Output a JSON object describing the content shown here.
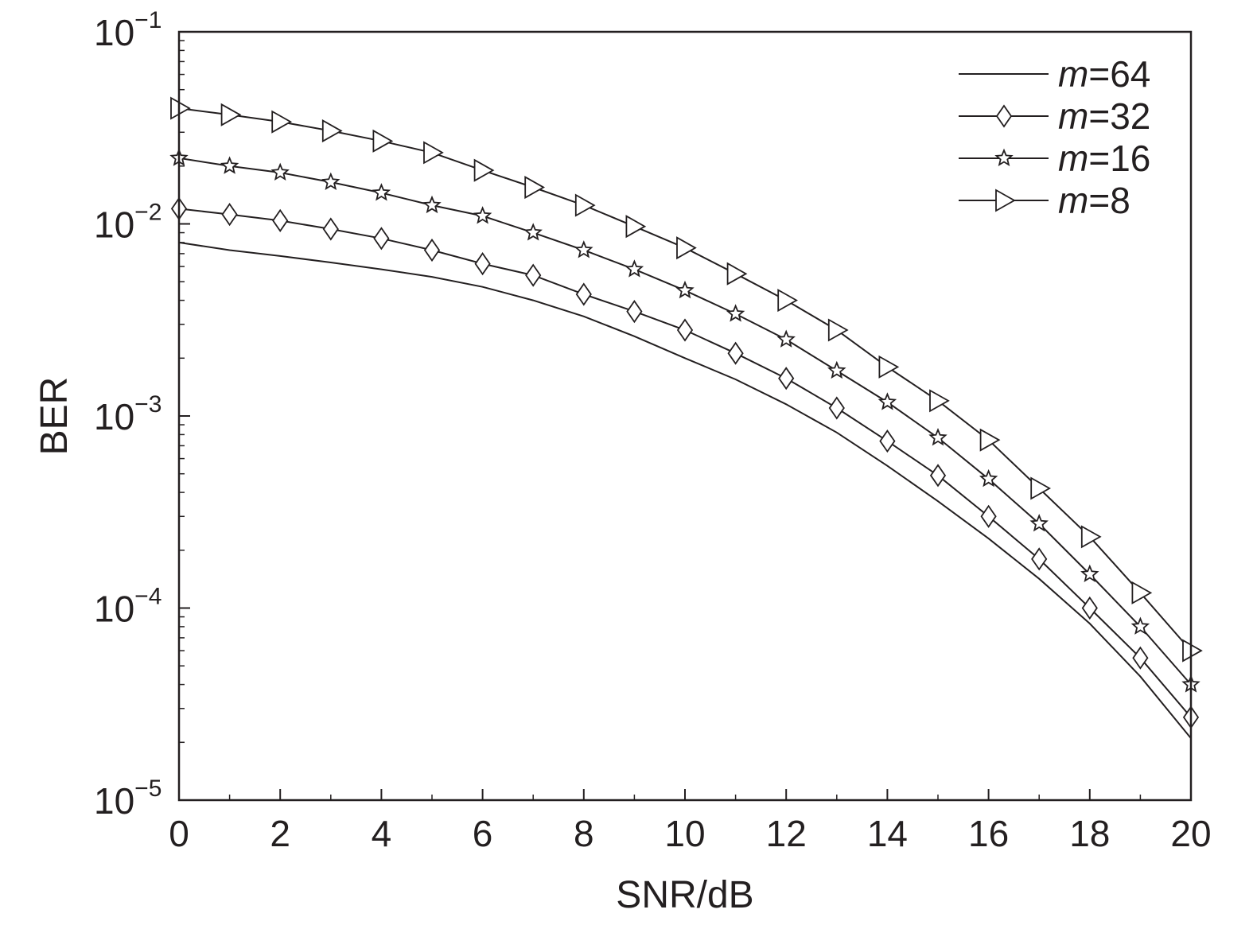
{
  "chart_data": {
    "type": "line",
    "xlabel": "SNR/dB",
    "ylabel": "BER",
    "xlim": [
      0,
      20
    ],
    "ylim": [
      1e-05,
      0.1
    ],
    "yscale": "log",
    "grid": false,
    "legend_position": "top-right",
    "x_ticks": [
      "0",
      "2",
      "4",
      "6",
      "8",
      "10",
      "12",
      "14",
      "16",
      "18",
      "20"
    ],
    "y_ticks": [
      {
        "base": "10",
        "exp": "−1",
        "value": 0.1
      },
      {
        "base": "10",
        "exp": "−2",
        "value": 0.01
      },
      {
        "base": "10",
        "exp": "−3",
        "value": 0.001
      },
      {
        "base": "10",
        "exp": "−4",
        "value": 0.0001
      },
      {
        "base": "10",
        "exp": "−5",
        "value": 1e-05
      }
    ],
    "x": [
      0,
      1,
      2,
      3,
      4,
      5,
      6,
      7,
      8,
      9,
      10,
      11,
      12,
      13,
      14,
      15,
      16,
      17,
      18,
      19,
      20
    ],
    "series": [
      {
        "name": "m=64",
        "name_italic": "m",
        "name_rest": "=64",
        "marker": "none",
        "values": [
          0.008,
          0.0073,
          0.0068,
          0.0063,
          0.0058,
          0.0053,
          0.0047,
          0.004,
          0.0033,
          0.0026,
          0.002,
          0.00155,
          0.00115,
          0.00082,
          0.00055,
          0.00036,
          0.00023,
          0.000142,
          8.3e-05,
          4.4e-05,
          2.1e-05
        ]
      },
      {
        "name": "m=32",
        "name_italic": "m",
        "name_rest": "=32",
        "marker": "diamond",
        "values": [
          0.012,
          0.0112,
          0.0104,
          0.0094,
          0.0084,
          0.0073,
          0.0062,
          0.0054,
          0.0043,
          0.0035,
          0.0028,
          0.00212,
          0.00157,
          0.0011,
          0.00074,
          0.00049,
          0.0003,
          0.00018,
          0.0001,
          5.5e-05,
          2.7e-05
        ]
      },
      {
        "name": "m=16",
        "name_italic": "m",
        "name_rest": "=16",
        "marker": "star",
        "values": [
          0.022,
          0.02,
          0.0185,
          0.0165,
          0.0145,
          0.0125,
          0.011,
          0.009,
          0.0073,
          0.0058,
          0.0045,
          0.0034,
          0.0025,
          0.00172,
          0.00118,
          0.00077,
          0.00047,
          0.000275,
          0.00015,
          8e-05,
          4e-05
        ]
      },
      {
        "name": "m=8",
        "name_italic": "m",
        "name_rest": "=8",
        "marker": "triangle-right",
        "values": [
          0.04,
          0.037,
          0.034,
          0.0305,
          0.027,
          0.0235,
          0.019,
          0.0155,
          0.0125,
          0.0097,
          0.0075,
          0.0055,
          0.004,
          0.0028,
          0.0018,
          0.0012,
          0.00075,
          0.00042,
          0.000235,
          0.00012,
          6e-05
        ]
      }
    ]
  }
}
